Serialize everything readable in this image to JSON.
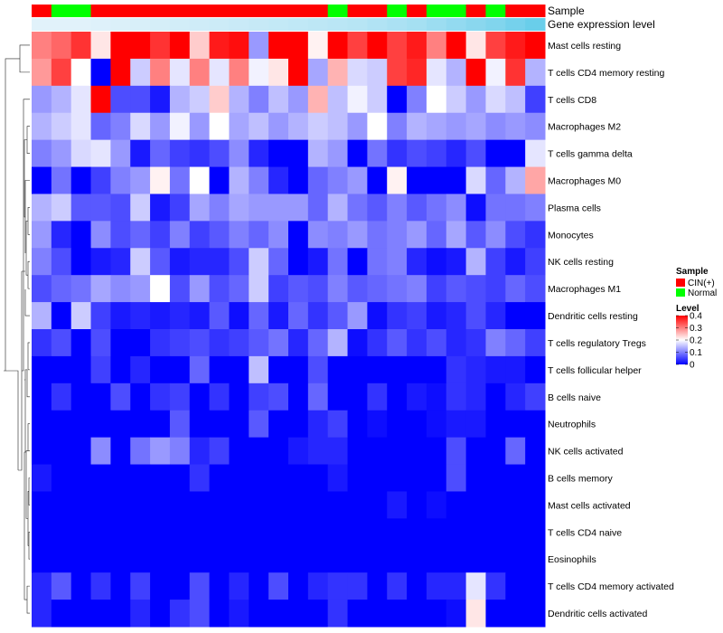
{
  "chart_data": {
    "type": "heatmap",
    "title": "",
    "annotations": [
      {
        "name": "Sample",
        "label": "Sample"
      },
      {
        "name": "Gene expression level",
        "label": "Gene expression level"
      }
    ],
    "sample_groups": [
      "CIN(+)",
      "Normal",
      "CIN(+)",
      "CIN(+)",
      "CIN(+)",
      "CIN(+)",
      "CIN(+)",
      "CIN(+)",
      "CIN(+)",
      "CIN(+)",
      "CIN(+)",
      "CIN(+)",
      "CIN(+)",
      "CIN(+)",
      "Normal",
      "CIN(+)",
      "CIN(+)",
      "Normal",
      "CIN(+)",
      "Normal",
      "Normal",
      "CIN(+)",
      "Normal",
      "CIN(+)",
      "CIN(+)"
    ],
    "column_spans": [
      1,
      2,
      1,
      1,
      1,
      1,
      1,
      1,
      1,
      1,
      1,
      1,
      1,
      1,
      1,
      1,
      1,
      1,
      1,
      1,
      1,
      1,
      1,
      1,
      1
    ],
    "expression_levels": [
      0.1,
      0.1,
      0.12,
      0.14,
      0.16,
      0.18,
      0.2,
      0.22,
      0.24,
      0.26,
      0.28,
      0.3,
      0.32,
      0.34,
      0.36,
      0.38,
      0.42,
      0.46,
      0.5,
      0.56,
      0.62,
      0.68,
      0.74,
      0.82,
      0.9
    ],
    "rows": [
      "Mast cells resting",
      "T cells CD4 memory resting",
      "T cells CD8",
      "Macrophages M2",
      "T cells gamma delta",
      "Macrophages M0",
      "Plasma cells",
      "Monocytes",
      "NK cells resting",
      "Macrophages M1",
      "Dendritic cells resting",
      "T cells regulatory  Tregs",
      "T cells follicular helper",
      "B cells naive",
      "Neutrophils",
      "NK cells activated",
      "B cells memory",
      "Mast cells activated",
      "T cells CD4 naive",
      "Eosinophils",
      "T cells CD4 memory activated",
      "Dendritic cells activated"
    ],
    "values": [
      [
        0.3,
        0.32,
        0.36,
        0.22,
        0.4,
        0.4,
        0.36,
        0.4,
        0.24,
        0.38,
        0.39,
        0.12,
        0.4,
        0.4,
        0.21,
        0.4,
        0.35,
        0.4,
        0.35,
        0.38,
        0.3,
        0.4,
        0.22,
        0.35,
        0.38,
        0.4
      ],
      [
        0.28,
        0.35,
        0.2,
        0.0,
        0.4,
        0.16,
        0.3,
        0.18,
        0.3,
        0.18,
        0.3,
        0.19,
        0.22,
        0.4,
        0.13,
        0.26,
        0.17,
        0.16,
        0.35,
        0.37,
        0.18,
        0.14,
        0.4,
        0.19,
        0.36,
        0.14
      ],
      [
        0.12,
        0.14,
        0.18,
        0.4,
        0.06,
        0.06,
        0.02,
        0.14,
        0.16,
        0.24,
        0.14,
        0.1,
        0.15,
        0.12,
        0.26,
        0.15,
        0.19,
        0.16,
        0.0,
        0.1,
        0.2,
        0.16,
        0.12,
        0.17,
        0.15,
        0.05
      ],
      [
        0.14,
        0.16,
        0.18,
        0.08,
        0.1,
        0.17,
        0.12,
        0.19,
        0.12,
        0.2,
        0.13,
        0.15,
        0.12,
        0.14,
        0.16,
        0.15,
        0.12,
        0.2,
        0.1,
        0.14,
        0.13,
        0.12,
        0.13,
        0.11,
        0.12,
        0.11
      ],
      [
        0.1,
        0.12,
        0.17,
        0.18,
        0.12,
        0.02,
        0.08,
        0.05,
        0.04,
        0.06,
        0.11,
        0.03,
        0.0,
        0.0,
        0.14,
        0.12,
        0.0,
        0.09,
        0.04,
        0.06,
        0.05,
        0.03,
        0.06,
        0.0,
        0.0,
        0.18
      ],
      [
        0.0,
        0.09,
        0.0,
        0.05,
        0.1,
        0.12,
        0.21,
        0.09,
        0.2,
        0.0,
        0.14,
        0.1,
        0.03,
        0.0,
        0.08,
        0.1,
        0.12,
        0.0,
        0.21,
        0.0,
        0.0,
        0.0,
        0.17,
        0.08,
        0.14,
        0.27
      ],
      [
        0.14,
        0.16,
        0.07,
        0.07,
        0.06,
        0.16,
        0.02,
        0.05,
        0.13,
        0.1,
        0.13,
        0.12,
        0.12,
        0.12,
        0.08,
        0.14,
        0.09,
        0.07,
        0.1,
        0.07,
        0.09,
        0.11,
        0.01,
        0.09,
        0.09,
        0.1
      ],
      [
        0.12,
        0.03,
        0.0,
        0.11,
        0.06,
        0.08,
        0.05,
        0.1,
        0.05,
        0.07,
        0.1,
        0.08,
        0.11,
        0.0,
        0.11,
        0.1,
        0.12,
        0.09,
        0.1,
        0.12,
        0.08,
        0.13,
        0.07,
        0.11,
        0.06,
        0.04
      ],
      [
        0.1,
        0.06,
        0.0,
        0.02,
        0.03,
        0.16,
        0.07,
        0.02,
        0.03,
        0.03,
        0.06,
        0.16,
        0.08,
        0.0,
        0.02,
        0.09,
        0.0,
        0.09,
        0.1,
        0.03,
        0.01,
        0.02,
        0.14,
        0.05,
        0.02,
        0.05
      ],
      [
        0.06,
        0.08,
        0.09,
        0.13,
        0.11,
        0.12,
        0.2,
        0.06,
        0.12,
        0.06,
        0.08,
        0.16,
        0.05,
        0.07,
        0.06,
        0.1,
        0.07,
        0.08,
        0.09,
        0.1,
        0.05,
        0.07,
        0.06,
        0.05,
        0.08,
        0.06
      ],
      [
        0.14,
        0.0,
        0.16,
        0.05,
        0.02,
        0.03,
        0.02,
        0.03,
        0.02,
        0.07,
        0.01,
        0.08,
        0.02,
        0.08,
        0.04,
        0.07,
        0.12,
        0.01,
        0.04,
        0.05,
        0.02,
        0.03,
        0.06,
        0.03,
        0.0,
        0.0
      ],
      [
        0.04,
        0.06,
        0.0,
        0.06,
        0.0,
        0.0,
        0.04,
        0.05,
        0.06,
        0.04,
        0.05,
        0.07,
        0.09,
        0.03,
        0.08,
        0.14,
        0.01,
        0.04,
        0.07,
        0.04,
        0.06,
        0.03,
        0.04,
        0.1,
        0.08,
        0.05
      ],
      [
        0.0,
        0.0,
        0.0,
        0.05,
        0.0,
        0.03,
        0.0,
        0.0,
        0.08,
        0.0,
        0.0,
        0.15,
        0.0,
        0.0,
        0.06,
        0.0,
        0.0,
        0.0,
        0.0,
        0.0,
        0.0,
        0.04,
        0.03,
        0.02,
        0.02,
        0.0
      ],
      [
        0.0,
        0.04,
        0.0,
        0.0,
        0.06,
        0.0,
        0.04,
        0.05,
        0.0,
        0.04,
        0.0,
        0.05,
        0.06,
        0.0,
        0.08,
        0.0,
        0.0,
        0.04,
        0.0,
        0.02,
        0.01,
        0.04,
        0.03,
        0.0,
        0.03,
        0.05
      ],
      [
        0.0,
        0.0,
        0.0,
        0.0,
        0.0,
        0.0,
        0.0,
        0.07,
        0.0,
        0.0,
        0.0,
        0.07,
        0.0,
        0.0,
        0.03,
        0.05,
        0.0,
        0.01,
        0.0,
        0.0,
        0.01,
        0.02,
        0.02,
        0.0,
        0.0,
        0.0
      ],
      [
        0.0,
        0.0,
        0.0,
        0.11,
        0.0,
        0.09,
        0.12,
        0.1,
        0.03,
        0.05,
        0.0,
        0.0,
        0.0,
        0.02,
        0.03,
        0.03,
        0.0,
        0.0,
        0.0,
        0.0,
        0.0,
        0.06,
        0.0,
        0.0,
        0.08,
        0.0
      ],
      [
        0.02,
        0.0,
        0.0,
        0.0,
        0.0,
        0.0,
        0.0,
        0.0,
        0.04,
        0.0,
        0.0,
        0.0,
        0.0,
        0.0,
        0.0,
        0.02,
        0.0,
        0.0,
        0.0,
        0.0,
        0.0,
        0.06,
        0.0,
        0.0,
        0.0,
        0.0
      ],
      [
        0.0,
        0.0,
        0.0,
        0.0,
        0.0,
        0.0,
        0.0,
        0.0,
        0.0,
        0.0,
        0.0,
        0.0,
        0.0,
        0.0,
        0.0,
        0.0,
        0.0,
        0.0,
        0.02,
        0.0,
        0.01,
        0.0,
        0.0,
        0.0,
        0.0,
        0.0
      ],
      [
        0.0,
        0.0,
        0.0,
        0.0,
        0.0,
        0.0,
        0.0,
        0.0,
        0.0,
        0.0,
        0.0,
        0.0,
        0.0,
        0.0,
        0.0,
        0.0,
        0.0,
        0.0,
        0.0,
        0.0,
        0.0,
        0.0,
        0.0,
        0.0,
        0.0,
        0.0
      ],
      [
        0.0,
        0.0,
        0.0,
        0.0,
        0.0,
        0.0,
        0.0,
        0.0,
        0.0,
        0.0,
        0.0,
        0.0,
        0.0,
        0.0,
        0.0,
        0.0,
        0.0,
        0.0,
        0.0,
        0.0,
        0.0,
        0.0,
        0.0,
        0.0,
        0.0,
        0.0
      ],
      [
        0.03,
        0.07,
        0.0,
        0.04,
        0.0,
        0.05,
        0.0,
        0.0,
        0.06,
        0.0,
        0.03,
        0.0,
        0.06,
        0.0,
        0.03,
        0.04,
        0.04,
        0.0,
        0.04,
        0.0,
        0.03,
        0.03,
        0.18,
        0.04,
        0.0,
        0.0
      ],
      [
        0.03,
        0.0,
        0.0,
        0.0,
        0.0,
        0.03,
        0.0,
        0.04,
        0.06,
        0.0,
        0.02,
        0.0,
        0.0,
        0.0,
        0.0,
        0.04,
        0.0,
        0.0,
        0.0,
        0.0,
        0.0,
        0.01,
        0.22,
        0.0,
        0.0,
        0.0
      ]
    ],
    "color_scale": {
      "min": 0,
      "max": 0.4,
      "low": "#0000FF",
      "mid": "#FFFFFF",
      "high": "#FF0000"
    },
    "legend": {
      "sample_title": "Sample",
      "sample_entries": [
        {
          "label": "CIN(+)",
          "color": "#FF0000"
        },
        {
          "label": "Normal",
          "color": "#00FF00"
        }
      ],
      "level_title": "Level",
      "level_ticks": [
        "0.4",
        "0.3",
        "0.2",
        "0.1",
        "0"
      ]
    }
  }
}
